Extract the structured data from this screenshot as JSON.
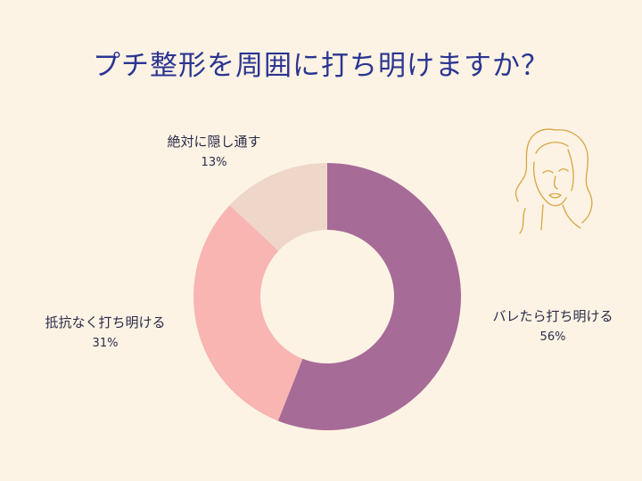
{
  "title": "プチ整形を周囲に打ち明けますか？",
  "chart_data": {
    "type": "pie",
    "donut": true,
    "title": "プチ整形を周囲に打ち明けますか？",
    "categories": [
      "バレたら打ち明ける",
      "抵抗なく打ち明ける",
      "絶対に隠し通す"
    ],
    "values": [
      56,
      31,
      13
    ],
    "value_labels": [
      "56%",
      "31%",
      "13%"
    ],
    "colors": [
      "#A76B98",
      "#F8B5B2",
      "#EED6C8"
    ],
    "legend": "none"
  },
  "colors": {
    "background": "#FDF3E4",
    "title": "#2B3592",
    "illustration": "#D9A441"
  },
  "icons": {
    "decoration": "woman-face-line-art-icon"
  }
}
